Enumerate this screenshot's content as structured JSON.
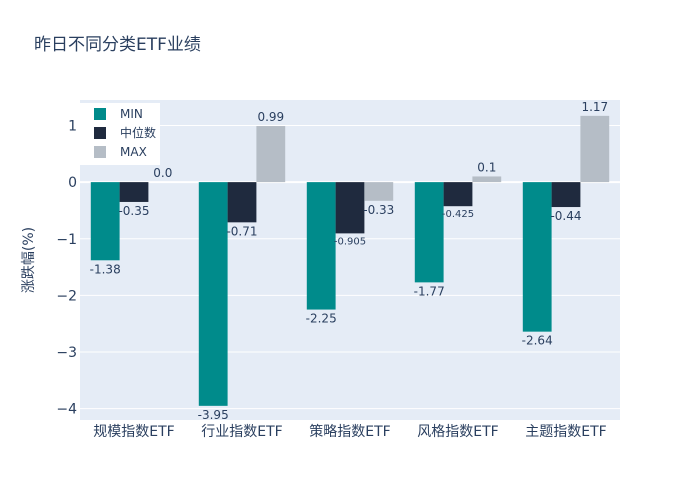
{
  "chart_data": {
    "type": "bar",
    "title": "昨日不同分类ETF业绩",
    "xlabel": "",
    "ylabel": "涨跌幅(%)",
    "ylim": [
      -4.2,
      1.45
    ],
    "yticks": [
      1,
      0,
      -1,
      -2,
      -3,
      -4
    ],
    "ytick_labels": [
      "1",
      "0",
      "−1",
      "−2",
      "−3",
      "−4"
    ],
    "categories": [
      "规模指数ETF",
      "行业指数ETF",
      "策略指数ETF",
      "风格指数ETF",
      "主题指数ETF"
    ],
    "series": [
      {
        "name": "MIN",
        "color": "#008B8B",
        "values": [
          -1.38,
          -3.95,
          -2.25,
          -1.77,
          -2.64
        ],
        "labels": [
          "-1.38",
          "-3.95",
          "-2.25",
          "-1.77",
          "-2.64"
        ]
      },
      {
        "name": "中位数",
        "color": "#1F2A3E",
        "values": [
          -0.35,
          -0.71,
          -0.905,
          -0.425,
          -0.44
        ],
        "labels": [
          "-0.35",
          "-0.71",
          "-0.905",
          "-0.425",
          "-0.44"
        ]
      },
      {
        "name": "MAX",
        "color": "#B5BDC6",
        "values": [
          0.0,
          0.99,
          -0.33,
          0.1,
          1.17
        ],
        "labels": [
          "0.0",
          "0.99",
          "-0.33",
          "0.1",
          "1.17"
        ]
      }
    ],
    "legend_position": "top-left"
  }
}
